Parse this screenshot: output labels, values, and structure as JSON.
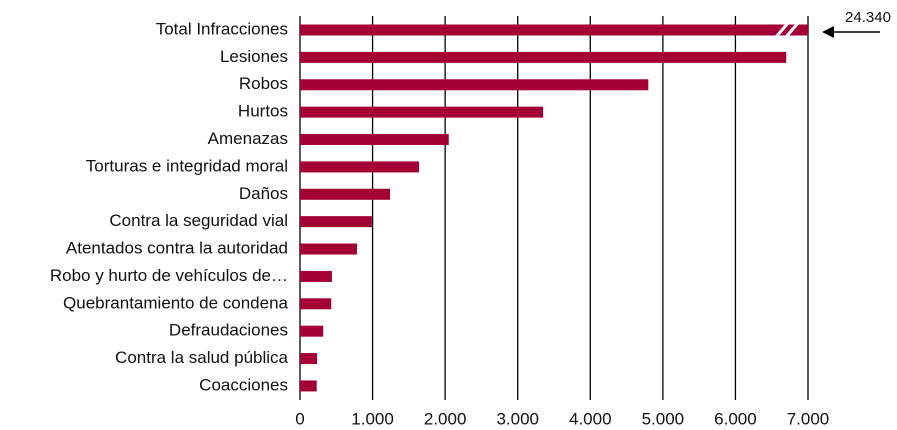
{
  "chart_data": {
    "type": "barh",
    "categories": [
      "Total Infracciones",
      "Lesiones",
      "Robos",
      "Hurtos",
      "Amenazas",
      "Torturas e integridad moral",
      "Daños",
      "Contra la seguridad vial",
      "Atentados contra la autoridad",
      "Robo y hurto de vehículos de…",
      "Quebrantamiento de condena",
      "Defraudaciones",
      "Contra la salud pública",
      "Coacciones"
    ],
    "values": [
      24340,
      6700,
      4800,
      3350,
      2050,
      1640,
      1240,
      990,
      785,
      440,
      430,
      320,
      235,
      230
    ],
    "value_labels": [
      "24.340",
      null,
      null,
      null,
      null,
      null,
      null,
      null,
      null,
      null,
      null,
      null,
      null,
      null
    ],
    "color": "#a50034",
    "xlim": [
      0,
      7000
    ],
    "xticks": [
      0,
      {
        "value": 1000,
        "label": "1.000"
      },
      {
        "value": 2000,
        "label": "2.000"
      },
      {
        "value": 3000,
        "label": "3.000"
      },
      {
        "value": 4000,
        "label": "4.000"
      },
      {
        "value": 5000,
        "label": "5.000"
      },
      {
        "value": 6000,
        "label": "6.000"
      },
      {
        "value": 7000,
        "label": "7.000"
      }
    ],
    "grid": true
  }
}
